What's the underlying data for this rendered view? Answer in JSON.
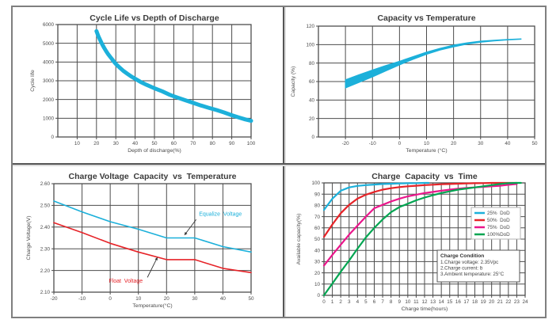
{
  "page": {
    "background": "#ffffff",
    "frame_border_color": "#7f7f7f",
    "divider_color": "#555555",
    "grid_color": "#4d4d4d",
    "title_color": "#3b3b3b",
    "tick_color": "#4a4a4a"
  },
  "chart_data": [
    {
      "id": "cycle-life-vs-depth-of-discharge",
      "type": "line",
      "title": "Cycle Life vs Depth of Discharge",
      "xlabel": "Depth of discharge(%)",
      "ylabel": "Cycle life",
      "xlim": [
        0,
        100
      ],
      "ylim": [
        0,
        6000
      ],
      "grid": true,
      "xticks": [
        10,
        20,
        30,
        40,
        50,
        60,
        70,
        80,
        90,
        100
      ],
      "xtick_labels": [
        "10",
        "20",
        "30",
        "40",
        "50",
        "60",
        "70",
        "80",
        "90",
        "100"
      ],
      "yticks": [
        0,
        1000,
        2000,
        3000,
        4000,
        5000,
        6000
      ],
      "ytick_labels": [
        "0",
        "1000",
        "2000",
        "3000",
        "4000",
        "5000",
        "6000"
      ],
      "series": [
        {
          "name": "cycle-life-curve",
          "color": "#1cb0da",
          "width": 5,
          "points": [
            [
              20,
              5650
            ],
            [
              21,
              5380
            ],
            [
              22,
              5150
            ],
            [
              23,
              4940
            ],
            [
              24,
              4750
            ],
            [
              25,
              4580
            ],
            [
              26,
              4430
            ],
            [
              27,
              4290
            ],
            [
              28,
              4160
            ],
            [
              29,
              4020
            ],
            [
              30,
              3900
            ],
            [
              32,
              3700
            ],
            [
              34,
              3520
            ],
            [
              36,
              3370
            ],
            [
              38,
              3230
            ],
            [
              40,
              3110
            ],
            [
              43,
              2930
            ],
            [
              46,
              2780
            ],
            [
              50,
              2600
            ],
            [
              54,
              2440
            ],
            [
              58,
              2250
            ],
            [
              62,
              2100
            ],
            [
              66,
              1960
            ],
            [
              70,
              1820
            ],
            [
              74,
              1680
            ],
            [
              78,
              1560
            ],
            [
              82,
              1440
            ],
            [
              86,
              1310
            ],
            [
              90,
              1160
            ],
            [
              94,
              1030
            ],
            [
              97,
              940
            ],
            [
              100,
              860
            ]
          ]
        }
      ]
    },
    {
      "id": "capacity-vs-temperature",
      "type": "area",
      "title": "Capacity vs Temperature",
      "xlabel": "Temperature (°C)",
      "ylabel": "Capacity (%)",
      "xlim": [
        -30,
        50
      ],
      "ylim": [
        0,
        120
      ],
      "grid": true,
      "xticks": [
        -20,
        -10,
        0,
        10,
        20,
        30,
        40,
        50
      ],
      "xtick_labels": [
        "-20",
        "-10",
        "0",
        "10",
        "20",
        "30",
        "40",
        "50"
      ],
      "yticks": [
        0,
        20,
        40,
        60,
        80,
        100,
        120
      ],
      "ytick_labels": [
        "0",
        "20",
        "40",
        "60",
        "80",
        "100",
        "120"
      ],
      "band": {
        "name": "capacity-range-band",
        "color": "#1cb0da",
        "upper": [
          [
            -20,
            62
          ],
          [
            -15,
            67.5
          ],
          [
            -10,
            72.5
          ],
          [
            -5,
            77.5
          ],
          [
            0,
            82
          ],
          [
            5,
            87
          ],
          [
            10,
            92
          ],
          [
            15,
            96
          ],
          [
            20,
            99.5
          ],
          [
            25,
            102
          ],
          [
            30,
            103.8
          ],
          [
            35,
            104.8
          ],
          [
            40,
            105.6
          ],
          [
            45,
            106.3
          ]
        ],
        "lower": [
          [
            -20,
            53
          ],
          [
            -15,
            59
          ],
          [
            -10,
            65
          ],
          [
            -5,
            71.5
          ],
          [
            0,
            78
          ],
          [
            5,
            84
          ],
          [
            10,
            89.5
          ],
          [
            15,
            94
          ],
          [
            20,
            97.5
          ],
          [
            25,
            100.5
          ],
          [
            30,
            102.5
          ],
          [
            35,
            104
          ],
          [
            40,
            105
          ],
          [
            45,
            105.8
          ]
        ]
      }
    },
    {
      "id": "charge-voltage-capacity-vs-temperature",
      "type": "line",
      "title": "Charge Voltage  Capacity  vs  Temperature",
      "xlabel": "Temperature(°C)",
      "ylabel": "Charge Voltage(V)",
      "xlim": [
        -20,
        50
      ],
      "ylim": [
        2.1,
        2.6
      ],
      "grid": true,
      "xticks": [
        -20,
        -10,
        0,
        10,
        20,
        30,
        40,
        50
      ],
      "xtick_labels": [
        "-20",
        "-10",
        "0",
        "10",
        "20",
        "30",
        "40",
        "50"
      ],
      "yticks": [
        2.1,
        2.2,
        2.3,
        2.4,
        2.5,
        2.6
      ],
      "ytick_labels": [
        "2.10",
        "2.20",
        "2.30",
        "2.40",
        "2.50",
        "2.60"
      ],
      "series": [
        {
          "name": "equalize-voltage-line",
          "color": "#1cb0da",
          "width": 1.6,
          "points": [
            [
              -20,
              2.52
            ],
            [
              -10,
              2.47
            ],
            [
              0,
              2.425
            ],
            [
              10,
              2.39
            ],
            [
              20,
              2.35
            ],
            [
              30,
              2.35
            ],
            [
              40,
              2.31
            ],
            [
              50,
              2.285
            ]
          ]
        },
        {
          "name": "float-voltage-line",
          "color": "#e62328",
          "width": 1.6,
          "points": [
            [
              -20,
              2.42
            ],
            [
              -10,
              2.375
            ],
            [
              0,
              2.325
            ],
            [
              10,
              2.285
            ],
            [
              20,
              2.25
            ],
            [
              30,
              2.25
            ],
            [
              40,
              2.21
            ],
            [
              50,
              2.19
            ]
          ]
        }
      ],
      "annotations": [
        {
          "name": "equalize-voltage-label",
          "text": "Equalize  Voltage",
          "color": "#1cb0da",
          "at": [
            31.5,
            2.452
          ],
          "anchor": "start",
          "arrow": {
            "from": [
              30.5,
              2.435
            ],
            "to": [
              26.3,
              2.362
            ]
          }
        },
        {
          "name": "float-voltage-label",
          "text": "Float  Voltage",
          "color": "#e62328",
          "at": [
            -0.5,
            2.143
          ],
          "anchor": "start",
          "arrow": {
            "from": [
              13.2,
              2.168
            ],
            "to": [
              16.8,
              2.262
            ]
          }
        }
      ]
    },
    {
      "id": "charge-capacity-vs-time",
      "type": "line",
      "title": "Charge  Capacity  vs  Time",
      "xlabel": "Charge time(hours)",
      "ylabel": "Available capacity(%)",
      "xlim": [
        0,
        24
      ],
      "ylim": [
        0,
        100
      ],
      "grid": true,
      "xticks": [
        0,
        1,
        2,
        3,
        4,
        5,
        6,
        7,
        8,
        9,
        10,
        11,
        12,
        13,
        14,
        15,
        16,
        17,
        18,
        19,
        20,
        21,
        22,
        23,
        24
      ],
      "xtick_labels": [
        "0",
        "1",
        "2",
        "3",
        "4",
        "5",
        "6",
        "7",
        "8",
        "9",
        "10",
        "11",
        "12",
        "13",
        "14",
        "15",
        "16",
        "17",
        "18",
        "19",
        "20",
        "21",
        "22",
        "23",
        "24"
      ],
      "yticks": [
        0,
        10,
        20,
        30,
        40,
        50,
        60,
        70,
        80,
        90,
        100
      ],
      "ytick_labels": [
        "0",
        "10",
        "20",
        "30",
        "40",
        "50",
        "60",
        "70",
        "80",
        "90",
        "100"
      ],
      "series": [
        {
          "name": "dod-25-curve",
          "color": "#1cb0da",
          "width": 2.2,
          "points": [
            [
              0,
              76
            ],
            [
              1,
              86
            ],
            [
              2,
              93
            ],
            [
              3,
              96
            ],
            [
              4,
              97.3
            ],
            [
              5,
              98
            ],
            [
              6,
              98.5
            ],
            [
              7,
              99
            ],
            [
              8,
              99.2
            ],
            [
              9,
              99.5
            ],
            [
              10,
              99.7
            ],
            [
              11,
              99.8
            ],
            [
              12,
              100
            ],
            [
              12.5,
              100
            ]
          ]
        },
        {
          "name": "dod-50-curve",
          "color": "#e62328",
          "width": 2.2,
          "points": [
            [
              0,
              52
            ],
            [
              1,
              63
            ],
            [
              2,
              73
            ],
            [
              3,
              80.5
            ],
            [
              4,
              86
            ],
            [
              5,
              89.5
            ],
            [
              6,
              92
            ],
            [
              7,
              94
            ],
            [
              8,
              95.3
            ],
            [
              9,
              96.3
            ],
            [
              10,
              97
            ],
            [
              11,
              97.5
            ],
            [
              12,
              98
            ],
            [
              13,
              98.4
            ],
            [
              14,
              98.8
            ],
            [
              15,
              99
            ],
            [
              16,
              99.3
            ],
            [
              17,
              99.5
            ],
            [
              18,
              99.7
            ],
            [
              19,
              99.8
            ],
            [
              20,
              100
            ],
            [
              21,
              100
            ],
            [
              22,
              100
            ],
            [
              23,
              100
            ]
          ]
        },
        {
          "name": "dod-75-curve",
          "color": "#ea168b",
          "width": 2.2,
          "points": [
            [
              0,
              26.5
            ],
            [
              1,
              36
            ],
            [
              2,
              45
            ],
            [
              3,
              54
            ],
            [
              4,
              62
            ],
            [
              5,
              70
            ],
            [
              6,
              77.5
            ],
            [
              7,
              80.5
            ],
            [
              8,
              83.5
            ],
            [
              9,
              86
            ],
            [
              10,
              88
            ],
            [
              11,
              89.5
            ],
            [
              12,
              91
            ],
            [
              13,
              92
            ],
            [
              14,
              93
            ],
            [
              15,
              94
            ],
            [
              16,
              94.8
            ],
            [
              17,
              95.5
            ],
            [
              18,
              96
            ],
            [
              19,
              96.5
            ],
            [
              20,
              97
            ],
            [
              21,
              97.5
            ],
            [
              22,
              98.3
            ],
            [
              23,
              99
            ]
          ]
        },
        {
          "name": "dod-100-curve",
          "color": "#00a551",
          "width": 2.2,
          "points": [
            [
              0,
              0
            ],
            [
              1,
              10.5
            ],
            [
              2,
              21
            ],
            [
              3,
              31
            ],
            [
              4,
              41.5
            ],
            [
              5,
              51.5
            ],
            [
              6,
              60
            ],
            [
              7,
              67.5
            ],
            [
              8,
              74
            ],
            [
              9,
              78.5
            ],
            [
              10,
              81.5
            ],
            [
              11,
              84.5
            ],
            [
              12,
              87
            ],
            [
              13,
              89
            ],
            [
              14,
              91
            ],
            [
              15,
              92.5
            ],
            [
              16,
              94
            ],
            [
              17,
              95
            ],
            [
              18,
              96
            ],
            [
              19,
              97
            ],
            [
              20,
              98
            ],
            [
              21,
              99
            ],
            [
              22,
              99.7
            ],
            [
              23,
              100
            ],
            [
              23.5,
              100
            ]
          ]
        }
      ],
      "legend": {
        "position": "right-middle",
        "items": [
          {
            "label": "25%  DoD",
            "color": "#1cb0da"
          },
          {
            "label": "50%  DoD",
            "color": "#e62328"
          },
          {
            "label": "75%  DoD",
            "color": "#ea168b"
          },
          {
            "label": "100%DoD",
            "color": "#00a551"
          }
        ]
      },
      "note": {
        "title": "Charge Condition",
        "lines": [
          "1.Charge voltage: 2.35Vpc",
          "2.Charge current: ḃ",
          "3.Ambient temperature: 25°C"
        ]
      }
    }
  ]
}
